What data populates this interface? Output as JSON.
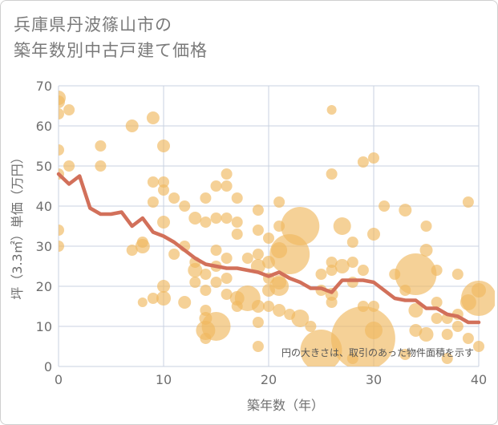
{
  "title": {
    "line1": "兵庫県丹波篠山市の",
    "line2": "築年数別中古戸建て価格"
  },
  "note": "円の大きさは、取引のあった物件面積を示す",
  "colors": {
    "bubble": "#f0b860",
    "line": "#d2705a",
    "grid": "#c8d2e0",
    "background": "#ffffff"
  },
  "chart_data": {
    "type": "scatter",
    "xlabel": "築年数（年）",
    "ylabel": "坪（3.3㎡）単価（万円）",
    "xlim": [
      0,
      40
    ],
    "ylim": [
      0,
      70
    ],
    "x_ticks": [
      "0",
      "10",
      "20",
      "30",
      "40"
    ],
    "y_ticks": [
      "0",
      "10",
      "20",
      "30",
      "40",
      "50",
      "60",
      "70"
    ],
    "grid": true,
    "series": [
      {
        "kind": "bubble",
        "points": [
          {
            "x": 0,
            "y": 67,
            "s": 9
          },
          {
            "x": 0,
            "y": 66,
            "s": 8
          },
          {
            "x": 0,
            "y": 63,
            "s": 7
          },
          {
            "x": 1,
            "y": 64,
            "s": 7
          },
          {
            "x": 0,
            "y": 54,
            "s": 7
          },
          {
            "x": 1,
            "y": 50,
            "s": 7
          },
          {
            "x": 0,
            "y": 48,
            "s": 7
          },
          {
            "x": 0,
            "y": 34,
            "s": 7
          },
          {
            "x": 0,
            "y": 30,
            "s": 7
          },
          {
            "x": 4,
            "y": 55,
            "s": 7
          },
          {
            "x": 4,
            "y": 50,
            "s": 7
          },
          {
            "x": 7,
            "y": 60,
            "s": 8
          },
          {
            "x": 9,
            "y": 62,
            "s": 8
          },
          {
            "x": 10,
            "y": 55,
            "s": 8
          },
          {
            "x": 9,
            "y": 46,
            "s": 7
          },
          {
            "x": 10,
            "y": 46,
            "s": 7
          },
          {
            "x": 10,
            "y": 44,
            "s": 7
          },
          {
            "x": 9,
            "y": 41,
            "s": 7
          },
          {
            "x": 11,
            "y": 42,
            "s": 7
          },
          {
            "x": 10,
            "y": 36,
            "s": 8
          },
          {
            "x": 8,
            "y": 31,
            "s": 7
          },
          {
            "x": 8,
            "y": 30,
            "s": 9
          },
          {
            "x": 7,
            "y": 29,
            "s": 7
          },
          {
            "x": 11,
            "y": 28,
            "s": 7
          },
          {
            "x": 10,
            "y": 20,
            "s": 8
          },
          {
            "x": 10,
            "y": 17,
            "s": 9
          },
          {
            "x": 9,
            "y": 17,
            "s": 7
          },
          {
            "x": 8,
            "y": 16,
            "s": 6
          },
          {
            "x": 12,
            "y": 40,
            "s": 7
          },
          {
            "x": 12,
            "y": 30,
            "s": 7
          },
          {
            "x": 13,
            "y": 37,
            "s": 8
          },
          {
            "x": 13,
            "y": 26,
            "s": 7
          },
          {
            "x": 13,
            "y": 24,
            "s": 9
          },
          {
            "x": 13,
            "y": 21,
            "s": 7
          },
          {
            "x": 12,
            "y": 16,
            "s": 8
          },
          {
            "x": 14,
            "y": 42,
            "s": 7
          },
          {
            "x": 15,
            "y": 45,
            "s": 7
          },
          {
            "x": 15,
            "y": 37,
            "s": 7
          },
          {
            "x": 14,
            "y": 36,
            "s": 7
          },
          {
            "x": 16,
            "y": 48,
            "s": 7
          },
          {
            "x": 16,
            "y": 45,
            "s": 7
          },
          {
            "x": 17,
            "y": 42,
            "s": 7
          },
          {
            "x": 16,
            "y": 37,
            "s": 7
          },
          {
            "x": 17,
            "y": 36,
            "s": 7
          },
          {
            "x": 17,
            "y": 33,
            "s": 7
          },
          {
            "x": 15,
            "y": 29,
            "s": 7
          },
          {
            "x": 16,
            "y": 27,
            "s": 7
          },
          {
            "x": 15,
            "y": 25,
            "s": 7
          },
          {
            "x": 14,
            "y": 23,
            "s": 7
          },
          {
            "x": 15,
            "y": 21,
            "s": 7
          },
          {
            "x": 14,
            "y": 19,
            "s": 7
          },
          {
            "x": 14,
            "y": 14,
            "s": 7
          },
          {
            "x": 14,
            "y": 12,
            "s": 8
          },
          {
            "x": 14,
            "y": 9,
            "s": 12
          },
          {
            "x": 15,
            "y": 10,
            "s": 18
          },
          {
            "x": 14,
            "y": 7,
            "s": 7
          },
          {
            "x": 16,
            "y": 22,
            "s": 7
          },
          {
            "x": 16,
            "y": 18,
            "s": 7
          },
          {
            "x": 17,
            "y": 17,
            "s": 9
          },
          {
            "x": 17,
            "y": 15,
            "s": 7
          },
          {
            "x": 18,
            "y": 17,
            "s": 16
          },
          {
            "x": 18,
            "y": 27,
            "s": 7
          },
          {
            "x": 19,
            "y": 39,
            "s": 7
          },
          {
            "x": 19,
            "y": 34,
            "s": 7
          },
          {
            "x": 20,
            "y": 32,
            "s": 7
          },
          {
            "x": 19,
            "y": 28,
            "s": 7
          },
          {
            "x": 19,
            "y": 25,
            "s": 9
          },
          {
            "x": 20,
            "y": 26,
            "s": 8
          },
          {
            "x": 20,
            "y": 22,
            "s": 7
          },
          {
            "x": 20,
            "y": 19,
            "s": 8
          },
          {
            "x": 19,
            "y": 15,
            "s": 8
          },
          {
            "x": 20,
            "y": 15,
            "s": 7
          },
          {
            "x": 19,
            "y": 11,
            "s": 7
          },
          {
            "x": 19,
            "y": 5,
            "s": 7
          },
          {
            "x": 21,
            "y": 41,
            "s": 7
          },
          {
            "x": 21,
            "y": 35,
            "s": 7
          },
          {
            "x": 21,
            "y": 29,
            "s": 10
          },
          {
            "x": 22,
            "y": 28,
            "s": 25
          },
          {
            "x": 23,
            "y": 35,
            "s": 24
          },
          {
            "x": 21,
            "y": 21,
            "s": 9
          },
          {
            "x": 21,
            "y": 20,
            "s": 12
          },
          {
            "x": 21,
            "y": 14,
            "s": 8
          },
          {
            "x": 22,
            "y": 13,
            "s": 7
          },
          {
            "x": 23,
            "y": 12,
            "s": 11
          },
          {
            "x": 24,
            "y": 10,
            "s": 7
          },
          {
            "x": 25,
            "y": 4,
            "s": 26
          },
          {
            "x": 25,
            "y": 23,
            "s": 7
          },
          {
            "x": 26,
            "y": 26,
            "s": 7
          },
          {
            "x": 26,
            "y": 24,
            "s": 7
          },
          {
            "x": 25,
            "y": 19,
            "s": 7
          },
          {
            "x": 26,
            "y": 18,
            "s": 8
          },
          {
            "x": 26,
            "y": 16,
            "s": 7
          },
          {
            "x": 26,
            "y": 48,
            "s": 7
          },
          {
            "x": 26,
            "y": 64,
            "s": 6
          },
          {
            "x": 27,
            "y": 35,
            "s": 11
          },
          {
            "x": 27,
            "y": 25,
            "s": 9
          },
          {
            "x": 28,
            "y": 31,
            "s": 7
          },
          {
            "x": 28,
            "y": 26,
            "s": 7
          },
          {
            "x": 28,
            "y": 21,
            "s": 7
          },
          {
            "x": 29,
            "y": 51,
            "s": 7
          },
          {
            "x": 30,
            "y": 52,
            "s": 7
          },
          {
            "x": 30,
            "y": 33,
            "s": 8
          },
          {
            "x": 29,
            "y": 24,
            "s": 7
          },
          {
            "x": 29,
            "y": 15,
            "s": 7
          },
          {
            "x": 30,
            "y": 15,
            "s": 7
          },
          {
            "x": 30,
            "y": 9,
            "s": 11
          },
          {
            "x": 29,
            "y": 7,
            "s": 40
          },
          {
            "x": 28,
            "y": 2,
            "s": 7
          },
          {
            "x": 31,
            "y": 40,
            "s": 7
          },
          {
            "x": 32,
            "y": 23,
            "s": 7
          },
          {
            "x": 33,
            "y": 39,
            "s": 8
          },
          {
            "x": 33,
            "y": 19,
            "s": 7
          },
          {
            "x": 34,
            "y": 23,
            "s": 26
          },
          {
            "x": 35,
            "y": 35,
            "s": 7
          },
          {
            "x": 35,
            "y": 29,
            "s": 8
          },
          {
            "x": 34,
            "y": 14,
            "s": 9
          },
          {
            "x": 34,
            "y": 9,
            "s": 8
          },
          {
            "x": 35,
            "y": 8,
            "s": 9
          },
          {
            "x": 33,
            "y": 3,
            "s": 7
          },
          {
            "x": 36,
            "y": 24,
            "s": 7
          },
          {
            "x": 36,
            "y": 16,
            "s": 7
          },
          {
            "x": 36,
            "y": 12,
            "s": 7
          },
          {
            "x": 37,
            "y": 12,
            "s": 7
          },
          {
            "x": 37,
            "y": 8,
            "s": 7
          },
          {
            "x": 37,
            "y": 2,
            "s": 7
          },
          {
            "x": 38,
            "y": 23,
            "s": 7
          },
          {
            "x": 38,
            "y": 13,
            "s": 7
          },
          {
            "x": 38,
            "y": 10,
            "s": 7
          },
          {
            "x": 39,
            "y": 41,
            "s": 7
          },
          {
            "x": 39,
            "y": 16,
            "s": 10
          },
          {
            "x": 39,
            "y": 7,
            "s": 7
          },
          {
            "x": 40,
            "y": 19,
            "s": 9
          },
          {
            "x": 40,
            "y": 17,
            "s": 22
          },
          {
            "x": 40,
            "y": 5,
            "s": 7
          }
        ]
      },
      {
        "kind": "line",
        "x": [
          0,
          1,
          2,
          3,
          4,
          5,
          6,
          7,
          8,
          9,
          10,
          11,
          12,
          13,
          14,
          15,
          16,
          17,
          18,
          19,
          20,
          21,
          22,
          23,
          24,
          25,
          26,
          27,
          28,
          29,
          30,
          31,
          32,
          33,
          34,
          35,
          36,
          37,
          38,
          39,
          40
        ],
        "y": [
          48,
          45.5,
          47.5,
          39.5,
          38,
          38,
          38.5,
          35,
          37,
          33.5,
          32.5,
          31,
          29,
          27,
          25.5,
          25,
          24.5,
          24.5,
          24,
          23.5,
          22.5,
          23.5,
          22,
          21,
          19.5,
          19.5,
          18.5,
          21.5,
          21.5,
          21.5,
          21,
          19,
          17,
          16.5,
          16.5,
          14.5,
          14.5,
          13,
          12.5,
          11,
          11
        ]
      }
    ]
  }
}
